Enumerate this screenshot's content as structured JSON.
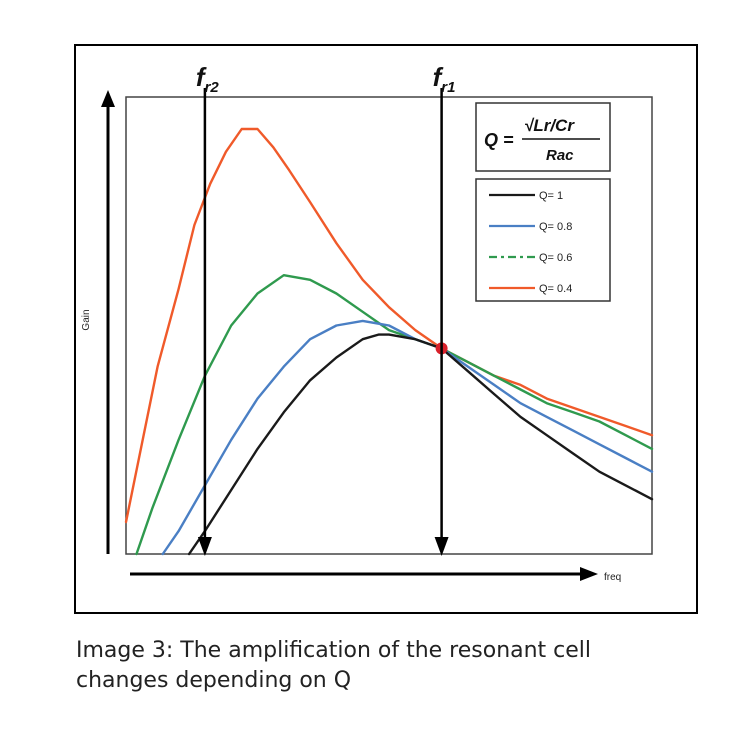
{
  "caption": {
    "line1": "Image 3: The amplification of the resonant cell",
    "line2": "changes depending on Q"
  },
  "chart_data": {
    "type": "line",
    "title": "",
    "xlabel": "freq",
    "ylabel": "Gain",
    "xlim": [
      0,
      100
    ],
    "ylim": [
      0,
      100
    ],
    "grid": false,
    "legend_position": "top-right",
    "markers": [
      {
        "label_main": "f",
        "label_sub": "r2",
        "x": 15
      },
      {
        "label_main": "f",
        "label_sub": "r1",
        "x": 60
      }
    ],
    "formula": {
      "lhs": "Q =",
      "numerator": "√Lr/Cr",
      "denominator": "Rac"
    },
    "intersection_point": {
      "x": 60,
      "y": 45,
      "color": "#d9202a"
    },
    "series": [
      {
        "name": "Q= 1",
        "color": "#1a1a1a",
        "dash": "solid",
        "x": [
          12,
          15,
          20,
          25,
          30,
          35,
          40,
          45,
          48,
          50,
          55,
          60,
          65,
          70,
          75,
          80,
          85,
          90,
          95,
          100
        ],
        "y": [
          0,
          5,
          14,
          23,
          31,
          38,
          43,
          47,
          48,
          48,
          47,
          45,
          40,
          35,
          30,
          26,
          22,
          18,
          15,
          12
        ]
      },
      {
        "name": "Q= 0.8",
        "color": "#4a7fc4",
        "dash": "solid",
        "x": [
          7,
          10,
          15,
          20,
          25,
          30,
          35,
          40,
          45,
          50,
          55,
          60,
          65,
          70,
          75,
          80,
          85,
          90,
          95,
          100
        ],
        "y": [
          0,
          5,
          15,
          25,
          34,
          41,
          47,
          50,
          51,
          50,
          47,
          45,
          41,
          37,
          33,
          30,
          27,
          24,
          21,
          18
        ]
      },
      {
        "name": "Q= 0.6",
        "color": "#2f9a4e",
        "dash": "solid",
        "x": [
          2,
          5,
          10,
          15,
          20,
          25,
          30,
          35,
          40,
          45,
          50,
          55,
          60,
          65,
          70,
          75,
          80,
          85,
          90,
          95,
          100
        ],
        "y": [
          0,
          10,
          25,
          39,
          50,
          57,
          61,
          60,
          57,
          53,
          49,
          47,
          45,
          42,
          39,
          36,
          33,
          31,
          29,
          26,
          23
        ]
      },
      {
        "name": "Q= 0.4",
        "color": "#f05a2a",
        "dash": "solid",
        "x": [
          0,
          3,
          6,
          10,
          13,
          16,
          19,
          22,
          25,
          28,
          31,
          35,
          40,
          45,
          50,
          55,
          60,
          65,
          70,
          75,
          80,
          85,
          90,
          95,
          100
        ],
        "y": [
          7,
          24,
          41,
          58,
          72,
          81,
          88,
          93,
          93,
          89,
          84,
          77,
          68,
          60,
          54,
          49,
          45,
          42,
          39,
          37,
          34,
          32,
          30,
          28,
          26
        ]
      }
    ]
  }
}
